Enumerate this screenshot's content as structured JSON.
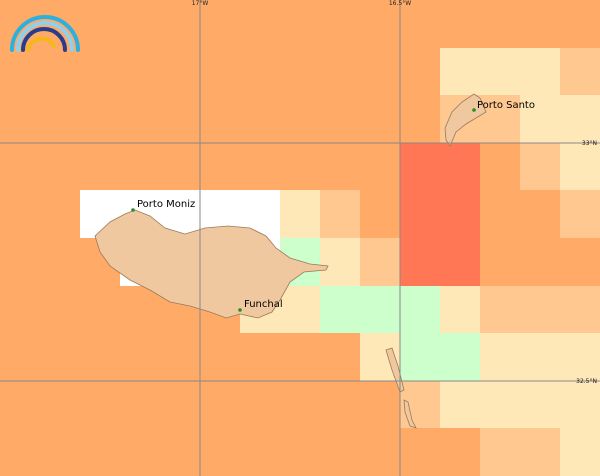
{
  "map": {
    "grid_labels": {
      "lon": [
        "17°W",
        "16.5°W"
      ],
      "lat": [
        "33°N",
        "32.5°N"
      ]
    },
    "places": [
      "Porto Moniz",
      "Funchal",
      "Porto Santo"
    ]
  }
}
